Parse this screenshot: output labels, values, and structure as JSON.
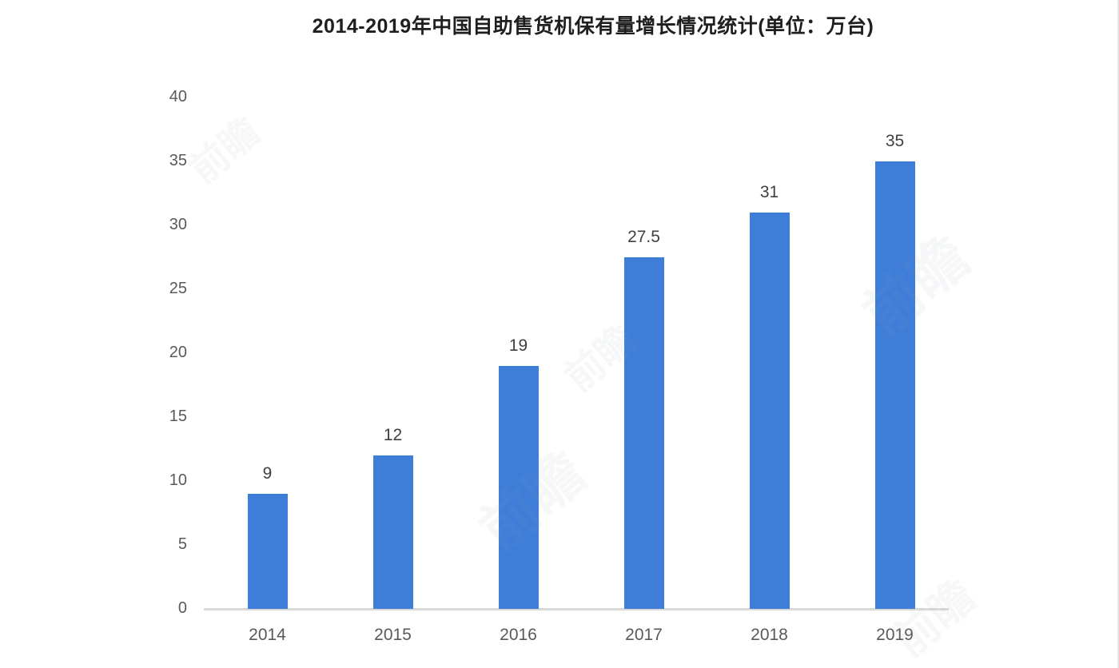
{
  "chart_data": {
    "type": "bar",
    "title": "2014-2019年中国自助售货机保有量增长情况统计(单位：万台)",
    "categories": [
      "2014",
      "2015",
      "2016",
      "2017",
      "2018",
      "2019"
    ],
    "values": [
      9,
      12,
      19,
      27.5,
      31,
      35
    ],
    "value_labels": [
      "9",
      "12",
      "19",
      "27.5",
      "31",
      "35"
    ],
    "yticks": [
      0,
      5,
      10,
      15,
      20,
      25,
      30,
      35,
      40
    ],
    "ylim": [
      0,
      40
    ],
    "xlabel": "",
    "ylabel": "",
    "grid": false,
    "legend_position": "none",
    "bar_color": "#3E7ED9",
    "axis_line_color": "#d9d9d9",
    "tick_label_color": "#595959",
    "value_label_color": "#404040",
    "title_color": "#1f1f1f"
  },
  "watermark": {
    "text": "前瞻"
  }
}
